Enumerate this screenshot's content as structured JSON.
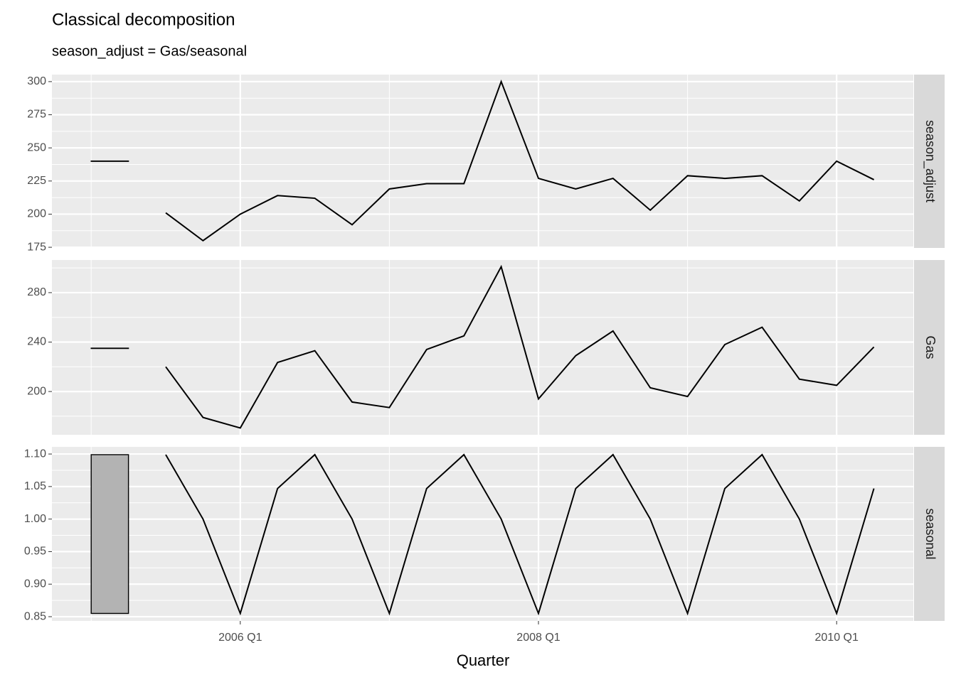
{
  "chart_data": [
    {
      "type": "line",
      "title": "Classical decomposition",
      "subtitle": "season_adjust = Gas/seasonal",
      "facet": "season_adjust",
      "values": [
        201,
        180,
        200,
        214,
        212,
        192,
        219,
        223,
        223,
        300,
        227,
        219,
        227,
        203,
        229,
        227,
        229,
        210,
        240,
        226
      ],
      "color": "#000000",
      "range_bar": [
        239.9,
        240.1
      ],
      "range_bar_color": "#b3b3b3",
      "ylim": [
        174.5,
        305.3
      ],
      "yticks": [
        175,
        200,
        225,
        250,
        275,
        300
      ],
      "grid": true
    },
    {
      "type": "line",
      "facet": "Gas",
      "values": [
        220,
        179,
        170.5,
        223.5,
        233,
        191.5,
        187,
        234,
        245,
        301,
        194,
        229,
        249,
        203,
        196,
        238,
        252,
        210,
        205,
        236
      ],
      "color": "#000000",
      "range_bar": [
        234.9,
        235.1
      ],
      "range_bar_color": "#b3b3b3",
      "ylim": [
        165,
        306.4
      ],
      "yticks": [
        200,
        240,
        280
      ],
      "grid": true
    },
    {
      "type": "line",
      "facet": "seasonal",
      "x_label": "Quarter",
      "categories": [
        null,
        null,
        "2006 Q1",
        null,
        null,
        null,
        null,
        null,
        null,
        null,
        "2008 Q1",
        null,
        null,
        null,
        null,
        null,
        null,
        null,
        "2010 Q1",
        null
      ],
      "values": [
        1.099,
        1.0,
        0.855,
        1.047,
        1.099,
        1.0,
        0.855,
        1.047,
        1.099,
        1.0,
        0.855,
        1.047,
        1.099,
        1.0,
        0.855,
        1.047,
        1.099,
        1.0,
        0.855,
        1.047
      ],
      "color": "#000000",
      "range_bar": [
        0.855,
        1.099
      ],
      "range_bar_color": "#b3b3b3",
      "ylim": [
        0.8435,
        1.111
      ],
      "yticks": [
        {
          "value": 0.85,
          "label": "0.85"
        },
        {
          "value": 0.9,
          "label": "0.90"
        },
        {
          "value": 0.95,
          "label": "0.95"
        },
        {
          "value": 1.0,
          "label": "1.00"
        },
        {
          "value": 1.05,
          "label": "1.05"
        },
        {
          "value": 1.1,
          "label": "1.10"
        }
      ],
      "grid": true
    }
  ]
}
